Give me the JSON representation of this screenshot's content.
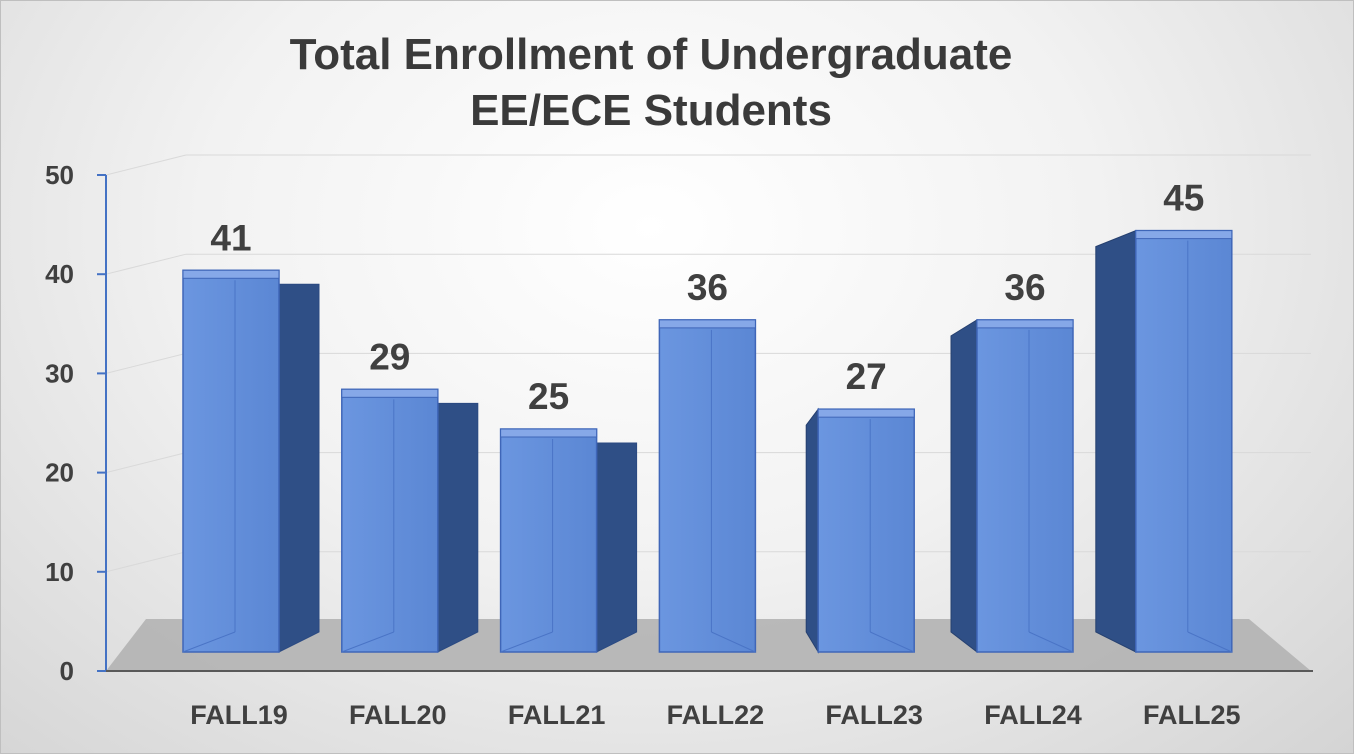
{
  "chart_data": {
    "type": "bar",
    "title_lines": [
      "Total Enrollment of Undergraduate",
      "EE/ECE Students"
    ],
    "categories": [
      "FALL19",
      "FALL20",
      "FALL21",
      "FALL22",
      "FALL23",
      "FALL24",
      "FALL25"
    ],
    "values": [
      41,
      29,
      25,
      36,
      27,
      36,
      45
    ],
    "data_labels": [
      "41",
      "29",
      "25",
      "36",
      "27",
      "36",
      "45"
    ],
    "yticks": [
      "0",
      "10",
      "20",
      "30",
      "40",
      "50"
    ],
    "ylim": [
      0,
      50
    ],
    "grid": true,
    "legend": "none",
    "style": "3d-column",
    "colors": {
      "bar_front": "#5b87d4",
      "bar_side": "#2f4f86",
      "bar_top": "#86a8e8",
      "axis": "#4472c4",
      "floor": "#b3b3b3",
      "gridline": "#d9d9d9",
      "text": "#404040"
    }
  }
}
